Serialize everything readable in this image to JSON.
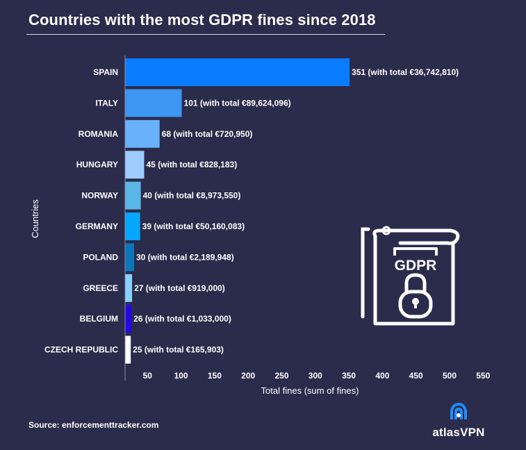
{
  "header": {
    "title": "Countries with the most GDPR fines since 2018"
  },
  "footer": {
    "source": "Source: enforcementtracker.com",
    "brand": "atlasVPN"
  },
  "illustration": {
    "label": "GDPR",
    "icon": "gdpr-document-lock-icon"
  },
  "colors": {
    "background": "#2b2b4b",
    "bars": [
      "#0a7cff",
      "#3d96f2",
      "#69b1fb",
      "#9fcbfd",
      "#5ab6e6",
      "#05a6ff",
      "#0b76ba",
      "#89d2ff",
      "#2607e8",
      "#ffffff"
    ]
  },
  "chart_data": {
    "type": "bar",
    "orientation": "horizontal",
    "title": "Countries with the most GDPR fines since 2018",
    "xlabel": "Total fines (sum of fines)",
    "ylabel": "Countries",
    "categories": [
      "SPAIN",
      "ITALY",
      "ROMANIA",
      "HUNGARY",
      "NORWAY",
      "GERMANY",
      "POLAND",
      "GREECE",
      "BELGIUM",
      "CZECH REPUBLIC"
    ],
    "values": [
      351,
      101,
      68,
      45,
      40,
      39,
      30,
      27,
      26,
      25
    ],
    "data_labels": [
      "351 (with total €36,742,810)",
      "101 (with total €89,624,096)",
      "68 (with total €720,950)",
      "45 (with total €828,183)",
      "40 (with total €8,973,550)",
      "39 (with total €50,160,083)",
      "30 (with total €2,189,948)",
      "27 (with total €919,000)",
      "26 (with total €1,033,000)",
      "25 (with total €165,903)"
    ],
    "xticks": [
      50,
      100,
      150,
      200,
      250,
      300,
      350,
      400,
      450,
      500,
      550
    ],
    "xlim": [
      0,
      550
    ],
    "grid": false,
    "legend": "none"
  }
}
